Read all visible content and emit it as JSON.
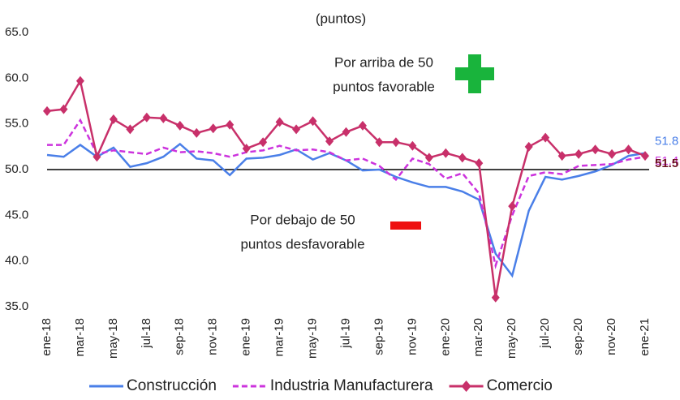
{
  "chart_data": {
    "type": "line",
    "subtitle": "(puntos)",
    "annotations": [
      [
        "Por arriba de 50",
        "puntos favorable"
      ],
      [
        "Por debajo de 50",
        "puntos desfavorable"
      ]
    ],
    "categories": [
      "ene-18",
      null,
      "mar-18",
      null,
      "may-18",
      null,
      "jul-18",
      null,
      "sep-18",
      null,
      "nov-18",
      null,
      "ene-19",
      null,
      "mar-19",
      null,
      "may-19",
      null,
      "jul-19",
      null,
      "sep-19",
      null,
      "nov-19",
      null,
      "ene-20",
      null,
      "mar-20",
      null,
      "may-20",
      null,
      "jul-20",
      null,
      "sep-20",
      null,
      "nov-20",
      null,
      "ene-21"
    ],
    "series": [
      {
        "name": "Construcción",
        "color": "#4a7fe8",
        "dash": false,
        "marker": false,
        "values": [
          51.6,
          51.4,
          52.7,
          51.4,
          52.4,
          50.3,
          50.7,
          51.4,
          52.8,
          51.2,
          51.0,
          49.4,
          51.2,
          51.3,
          51.6,
          52.2,
          51.1,
          51.8,
          51.0,
          49.9,
          50.0,
          49.2,
          48.6,
          48.1,
          48.1,
          47.6,
          46.7,
          40.8,
          38.4,
          45.5,
          49.2,
          48.9,
          49.3,
          49.8,
          50.5,
          51.5,
          51.8
        ]
      },
      {
        "name": "Industria Manufacturera",
        "color": "#cc33dd",
        "dash": true,
        "marker": false,
        "values": [
          52.7,
          52.7,
          55.4,
          51.7,
          52.1,
          51.9,
          51.7,
          52.4,
          51.9,
          52.0,
          51.8,
          51.4,
          51.9,
          52.1,
          52.6,
          52.1,
          52.2,
          51.9,
          51.0,
          51.2,
          50.4,
          48.9,
          51.2,
          50.6,
          49.0,
          49.6,
          47.4,
          39.5,
          45.0,
          49.3,
          49.7,
          49.5,
          50.4,
          50.5,
          50.6,
          51.1,
          51.4
        ]
      },
      {
        "name": "Comercio",
        "color": "#c8306a",
        "dash": false,
        "marker": true,
        "values": [
          56.4,
          56.6,
          59.7,
          51.4,
          55.5,
          54.4,
          55.7,
          55.6,
          54.8,
          54.0,
          54.5,
          54.9,
          52.3,
          53.0,
          55.2,
          54.4,
          55.3,
          53.1,
          54.1,
          54.8,
          53.0,
          53.0,
          52.6,
          51.3,
          51.8,
          51.3,
          50.7,
          36.0,
          46.0,
          52.5,
          53.5,
          51.5,
          51.7,
          52.2,
          51.7,
          52.2,
          51.5
        ]
      }
    ],
    "ylim": [
      35,
      65
    ],
    "yticks": [
      {
        "value": 35,
        "label": "35.0"
      },
      {
        "value": 40,
        "label": "40.0"
      },
      {
        "value": 45,
        "label": "45.0"
      },
      {
        "value": 50,
        "label": "50.0"
      },
      {
        "value": 55,
        "label": "55.0"
      },
      {
        "value": 60,
        "label": "60.0"
      },
      {
        "value": 65,
        "label": "65.0"
      }
    ],
    "hline": 50,
    "legend": "bottom"
  }
}
